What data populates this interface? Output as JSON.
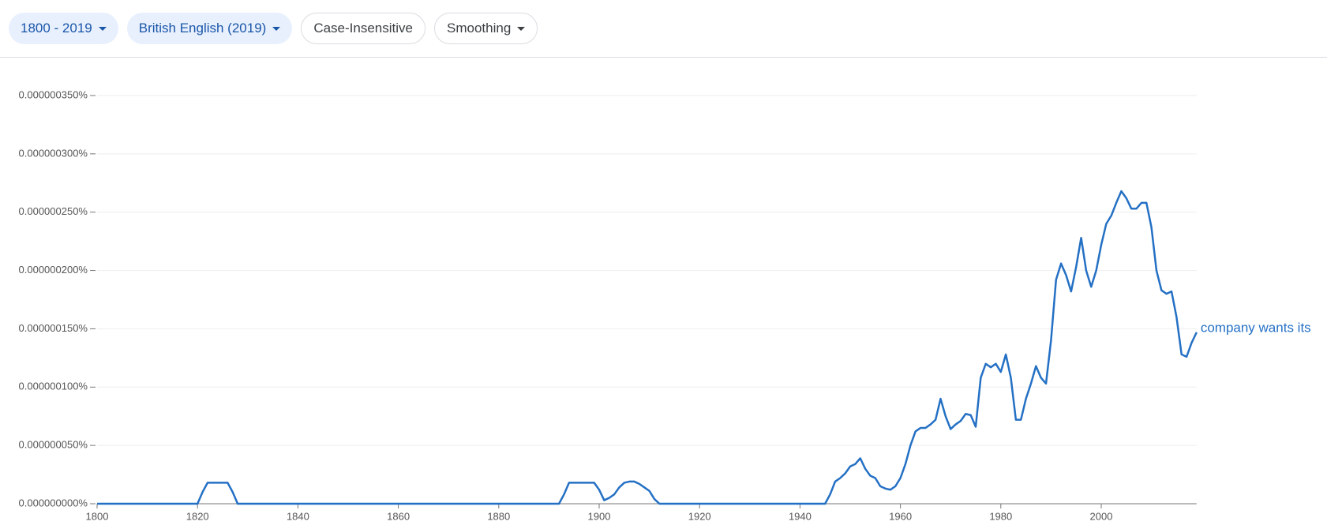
{
  "toolbar": {
    "buttons": [
      "1800 - 2019",
      "British English (2019)",
      "Case-Insensitive",
      "Smoothing"
    ]
  },
  "chart_data": {
    "type": "line",
    "x": [
      1800,
      1820,
      1821,
      1822,
      1823,
      1826,
      1827,
      1828,
      1892,
      1893,
      1894,
      1899,
      1900,
      1901,
      1902,
      1903,
      1904,
      1905,
      1906,
      1907,
      1908,
      1909,
      1910,
      1911,
      1912,
      1945,
      1946,
      1947,
      1948,
      1949,
      1950,
      1951,
      1952,
      1953,
      1954,
      1955,
      1956,
      1957,
      1958,
      1959,
      1960,
      1961,
      1962,
      1963,
      1964,
      1965,
      1966,
      1967,
      1968,
      1969,
      1970,
      1971,
      1972,
      1973,
      1974,
      1975,
      1976,
      1977,
      1978,
      1979,
      1980,
      1981,
      1982,
      1983,
      1984,
      1985,
      1986,
      1987,
      1988,
      1989,
      1990,
      1991,
      1992,
      1993,
      1994,
      1995,
      1996,
      1997,
      1998,
      1999,
      2000,
      2001,
      2002,
      2003,
      2004,
      2005,
      2006,
      2007,
      2008,
      2009,
      2010,
      2011,
      2012,
      2013,
      2014,
      2015,
      2016,
      2017,
      2018,
      2019
    ],
    "series": [
      {
        "name": "company wants its",
        "color": "#2470c4",
        "values": [
          0,
          0,
          1e-08,
          1.8e-08,
          1.8e-08,
          1.8e-08,
          1e-08,
          0,
          0,
          8e-09,
          1.8e-08,
          1.8e-08,
          1.2e-08,
          3e-09,
          5e-09,
          8e-09,
          1.4e-08,
          1.8e-08,
          1.9e-08,
          1.9e-08,
          1.7e-08,
          1.4e-08,
          1.1e-08,
          4e-09,
          0,
          0,
          8e-09,
          1.9e-08,
          2.2e-08,
          2.6e-08,
          3.2e-08,
          3.4e-08,
          3.9e-08,
          3e-08,
          2.4e-08,
          2.2e-08,
          1.5e-08,
          1.3e-08,
          1.2e-08,
          1.5e-08,
          2.2e-08,
          3.4e-08,
          5e-08,
          6.2e-08,
          6.5e-08,
          6.5e-08,
          6.8e-08,
          7.2e-08,
          9e-08,
          7.5e-08,
          6.4e-08,
          6.8e-08,
          7.1e-08,
          7.7e-08,
          7.6e-08,
          6.6e-08,
          1.08e-07,
          1.2e-07,
          1.17e-07,
          1.2e-07,
          1.13e-07,
          1.28e-07,
          1.08e-07,
          7.2e-08,
          7.2e-08,
          9e-08,
          1.03e-07,
          1.18e-07,
          1.08e-07,
          1.03e-07,
          1.4e-07,
          1.92e-07,
          2.06e-07,
          1.96e-07,
          1.82e-07,
          2.03e-07,
          2.28e-07,
          2e-07,
          1.86e-07,
          2e-07,
          2.22e-07,
          2.4e-07,
          2.47e-07,
          2.58e-07,
          2.68e-07,
          2.62e-07,
          2.53e-07,
          2.53e-07,
          2.58e-07,
          2.58e-07,
          2.37e-07,
          2e-07,
          1.83e-07,
          1.8e-07,
          1.82e-07,
          1.6e-07,
          1.28e-07,
          1.26e-07,
          1.38e-07,
          1.47e-07
        ]
      }
    ],
    "xlim": [
      1800,
      2019
    ],
    "ylim": [
      0,
      3.5e-07
    ],
    "xticks": [
      1800,
      1820,
      1840,
      1860,
      1880,
      1900,
      1920,
      1940,
      1960,
      1980,
      2000
    ],
    "yticks": [
      {
        "value": 0,
        "label": "0.000000000%"
      },
      {
        "value": 5e-08,
        "label": "0.000000050%"
      },
      {
        "value": 1e-07,
        "label": "0.000000100%"
      },
      {
        "value": 1.5e-07,
        "label": "0.000000150%"
      },
      {
        "value": 2e-07,
        "label": "0.000000200%"
      },
      {
        "value": 2.5e-07,
        "label": "0.000000250%"
      },
      {
        "value": 3e-07,
        "label": "0.000000300%"
      },
      {
        "value": 3.5e-07,
        "label": "0.000000350%"
      }
    ],
    "grid": true
  }
}
